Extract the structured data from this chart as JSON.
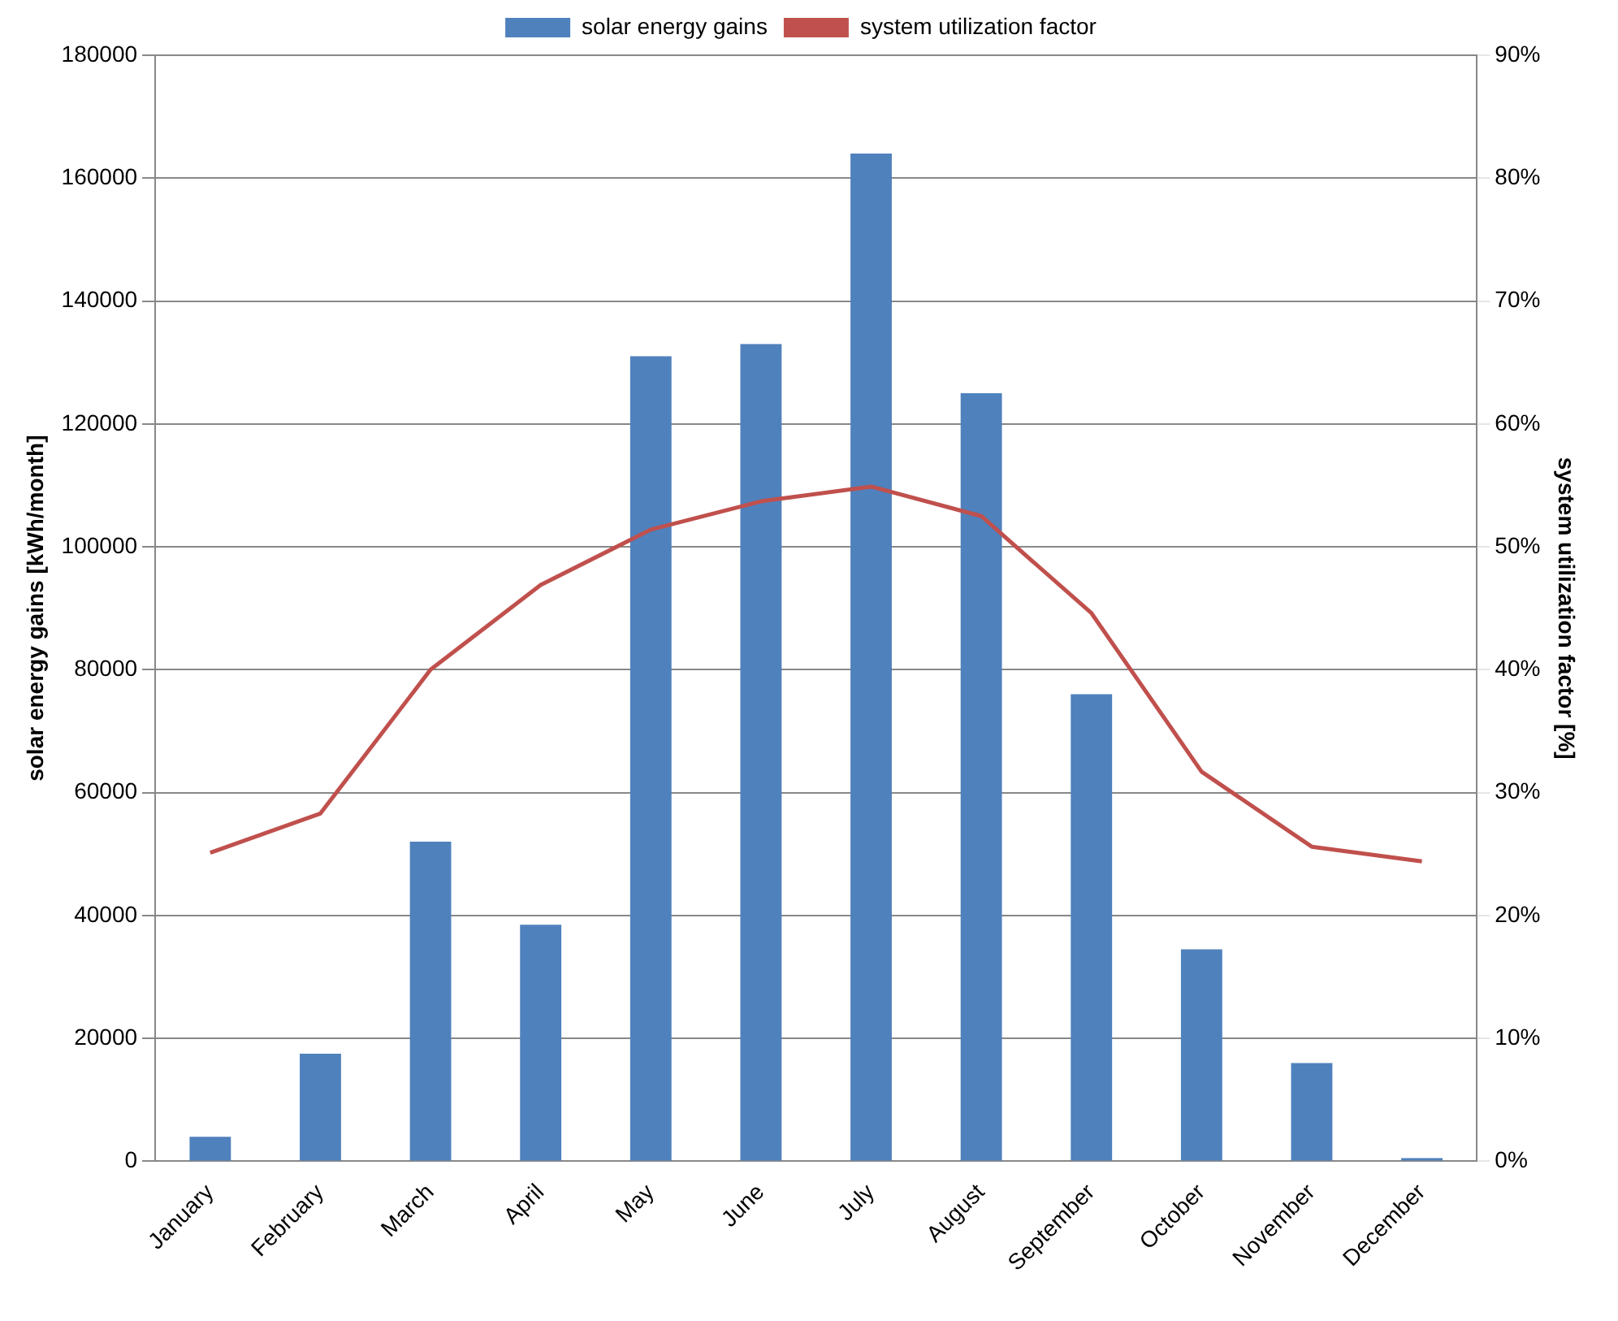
{
  "chart_data": {
    "type": "bar",
    "ylabel": "solar energy gains [kWh/month]",
    "y2label": "system utilization factor [%]",
    "categories": [
      "January",
      "February",
      "March",
      "April",
      "May",
      "June",
      "July",
      "August",
      "September",
      "October",
      "November",
      "December"
    ],
    "series": [
      {
        "name": "solar energy gains",
        "color": "#4f81bd",
        "values": [
          4000,
          17500,
          52000,
          38500,
          131000,
          133000,
          164000,
          125000,
          76000,
          34500,
          16000,
          500
        ]
      },
      {
        "name": "system utilization factor",
        "type": "line",
        "axis": "y2",
        "color": "#c0504d",
        "marker": "none",
        "values": [
          25.1,
          28.3,
          40,
          46.9,
          51.4,
          53.7,
          54.9,
          52.5,
          44.6,
          31.7,
          25.6,
          24.4
        ]
      }
    ],
    "ylim": [
      0,
      180000
    ],
    "yticks": [
      0,
      20000,
      40000,
      60000,
      80000,
      100000,
      120000,
      140000,
      160000,
      180000
    ],
    "y2lim": [
      0,
      90
    ],
    "y2ticks": [
      {
        "value": 0,
        "label": "0%"
      },
      {
        "value": 10,
        "label": "10%"
      },
      {
        "value": 20,
        "label": "20%"
      },
      {
        "value": 30,
        "label": "30%"
      },
      {
        "value": 40,
        "label": "40%"
      },
      {
        "value": 50,
        "label": "50%"
      },
      {
        "value": 60,
        "label": "60%"
      },
      {
        "value": 70,
        "label": "70%"
      },
      {
        "value": 80,
        "label": "80%"
      },
      {
        "value": 90,
        "label": "90%"
      }
    ],
    "grid": "y",
    "legend": "top"
  }
}
